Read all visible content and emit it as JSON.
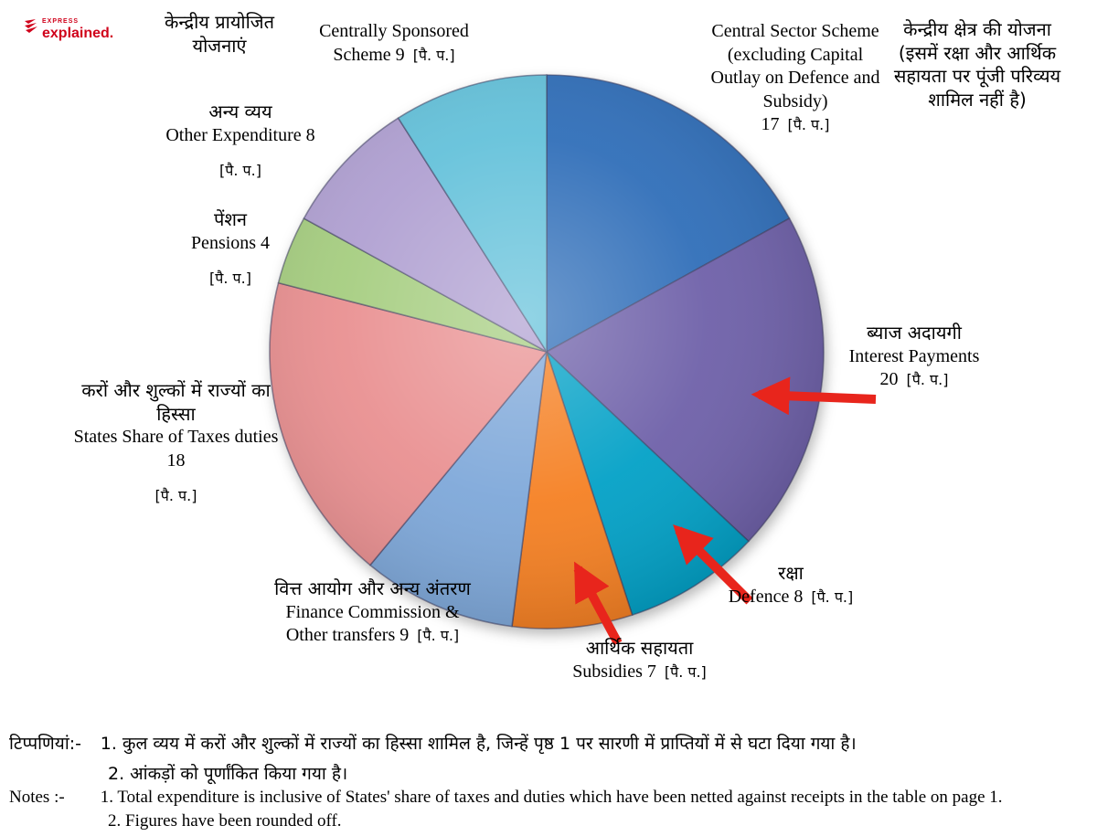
{
  "logo": {
    "brand": "EXPRESS",
    "name": "explained."
  },
  "chart_data": {
    "type": "pie",
    "title": "",
    "unit": "[पै. प.]",
    "total": 100,
    "start_angle": "top, clockwise",
    "slices": [
      {
        "id": "central-sector-scheme",
        "label_en": "Central Sector Scheme (excluding Capital Outlay on Defence and Subsidy)",
        "label_hi": "केन्द्रीय क्षेत्र की योजना (इसमें रक्षा और आर्थिक सहायता पर पूंजी परिव्यय शामिल नहीं है)",
        "value": 17,
        "color": "#2e6db8"
      },
      {
        "id": "interest-payments",
        "label_en": "Interest Payments",
        "label_hi": "ब्याज अदायगी",
        "value": 20,
        "color": "#6d5fa8"
      },
      {
        "id": "defence",
        "label_en": "Defence",
        "label_hi": "रक्षा",
        "value": 8,
        "color": "#00a0c6"
      },
      {
        "id": "subsidies",
        "label_en": "Subsidies",
        "label_hi": "आर्थिक सहायता",
        "value": 7,
        "color": "#f57f21"
      },
      {
        "id": "finance-commission-other-transfers",
        "label_en": "Finance Commission & Other transfers",
        "label_hi": "वित्त आयोग और अन्य अंतरण",
        "value": 9,
        "color": "#7da7d9"
      },
      {
        "id": "states-share-taxes-duties",
        "label_en": "States Share of Taxes duties",
        "label_hi": "करों और शुल्कों में राज्यों का हिस्सा",
        "value": 18,
        "color": "#e98f90"
      },
      {
        "id": "pensions",
        "label_en": "Pensions",
        "label_hi": "पेंशन",
        "value": 4,
        "color": "#a5cd7f"
      },
      {
        "id": "other-expenditure",
        "label_en": "Other Expenditure",
        "label_hi": "अन्य व्यय",
        "value": 8,
        "color": "#af9fd1"
      },
      {
        "id": "centrally-sponsored-scheme",
        "label_en": "Centrally Sponsored Scheme",
        "label_hi": "केन्द्रीय प्रायोजित योजनाएं",
        "value": 9,
        "color": "#63c1da"
      }
    ],
    "arrow_annotations": [
      "interest-payments",
      "defence",
      "subsidies"
    ],
    "arrow_color": "#e8251c"
  },
  "callouts": {
    "centrally_sponsored": {
      "hindi": "केन्द्रीय प्रायोजित योजनाएं",
      "english": "Centrally Sponsored Scheme 9"
    },
    "central_sector": {
      "hindi": "केन्द्रीय क्षेत्र की योजना (इसमें रक्षा और आर्थिक सहायता पर पूंजी परिव्यय शामिल नहीं है)",
      "english": "Central Sector Scheme (excluding Capital Outlay on Defence and Subsidy)",
      "figure": "17"
    },
    "other_expenditure": {
      "hindi": "अन्य व्यय",
      "english": "Other Expenditure 8"
    },
    "pensions": {
      "hindi": "पेंशन",
      "english": "Pensions 4"
    },
    "states_share": {
      "hindi": "करों और शुल्कों में राज्यों का हिस्सा",
      "english": "States Share of Taxes duties 18"
    },
    "finance_commission": {
      "hindi": "वित्त आयोग और अन्य अंतरण",
      "english": "Finance Commission & Other transfers 9"
    },
    "subsidies": {
      "hindi": "आर्थिक सहायता",
      "english": "Subsidies 7"
    },
    "defence": {
      "hindi": "रक्षा",
      "english": "Defence 8"
    },
    "interest_payments": {
      "hindi": "ब्याज अदायगी",
      "english": "Interest Payments",
      "figure": "20"
    }
  },
  "notes": {
    "hindi_label": "टिप्पणियां:-",
    "hindi_lines": [
      "1. कुल व्यय में करों और शुल्कों में राज्यों का हिस्सा शामिल है, जिन्हें पृष्ठ 1 पर सारणी में प्राप्तियों में से घटा दिया गया है।",
      "2. आंकड़ों को पूर्णांकित किया गया है।"
    ],
    "english_label": "Notes :-",
    "english_lines": [
      "1. Total expenditure is inclusive of States' share of taxes and duties which have been netted against receipts in the table on page 1.",
      "2. Figures have been rounded off."
    ]
  }
}
